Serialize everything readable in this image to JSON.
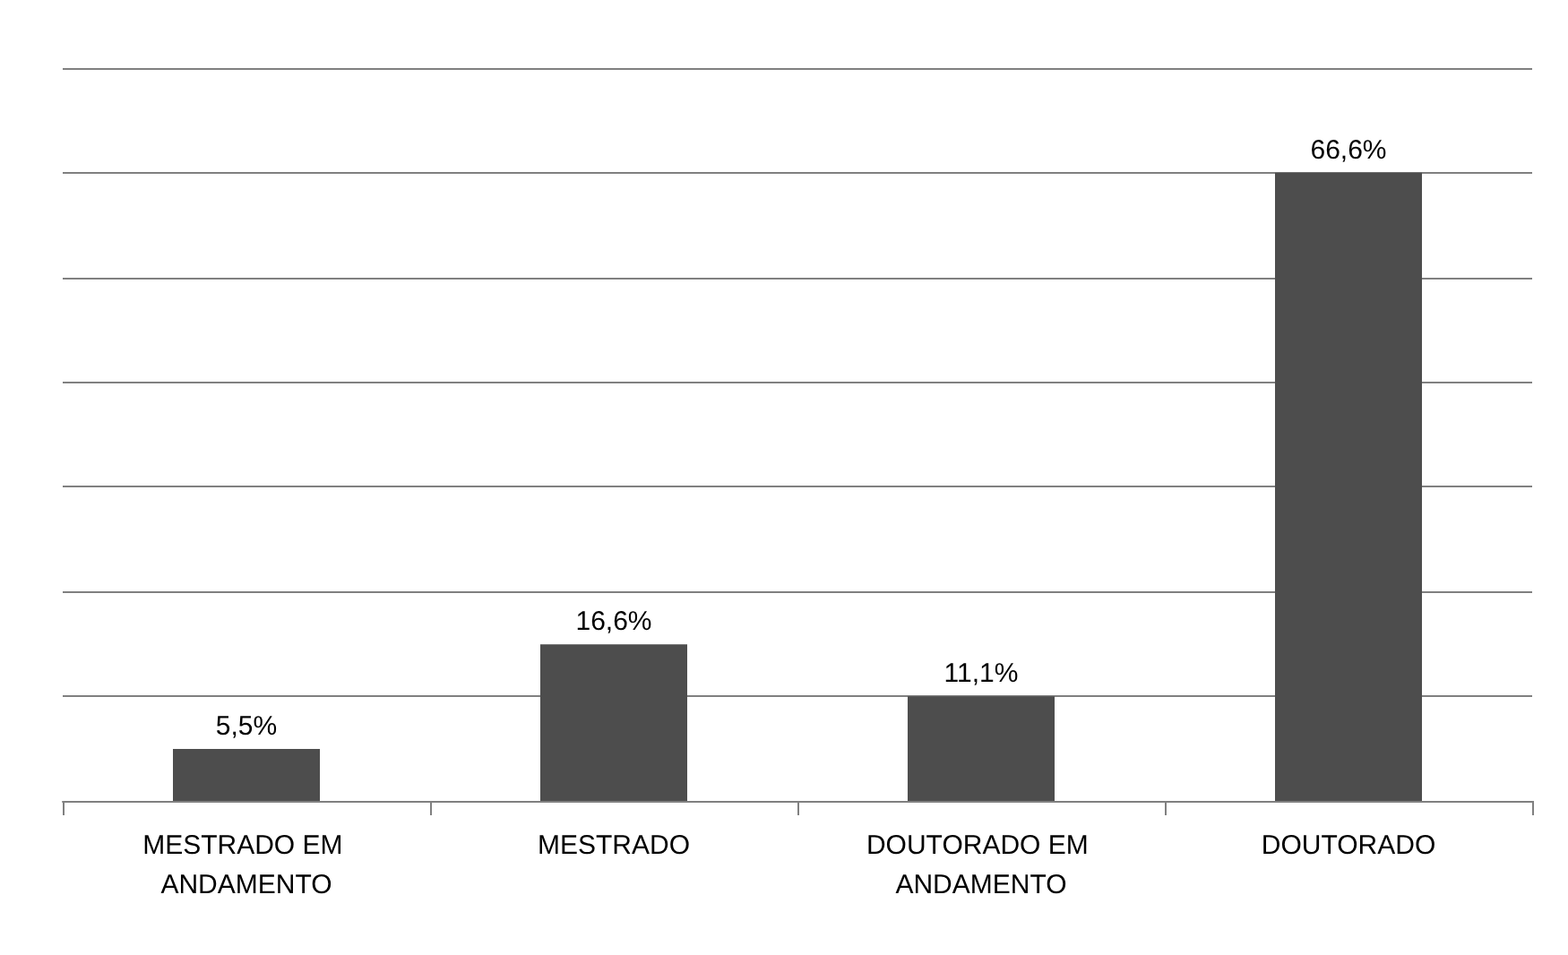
{
  "chart_data": {
    "type": "bar",
    "categories": [
      "MESTRADO EM ANDAMENTO",
      "MESTRADO",
      "DOUTORADO EM ANDAMENTO",
      "DOUTORADO"
    ],
    "values": [
      5.5,
      16.6,
      11.1,
      66.6
    ],
    "color": "#4d4d4d",
    "value_labels": [
      "5,5%",
      "16,6%",
      "11,1%",
      "66,6%"
    ],
    "ylim": [
      0,
      77.7
    ],
    "yticks": [
      0,
      {
        "value": 11.1,
        "label": null
      },
      {
        "value": 22.2,
        "label": null
      },
      {
        "value": 33.3,
        "label": null
      },
      {
        "value": 44.4,
        "label": null
      },
      {
        "value": 55.5,
        "label": null
      },
      {
        "value": 66.6,
        "label": null
      },
      {
        "value": 77.7,
        "label": null
      }
    ],
    "tick_labels": "x",
    "grid": "y"
  }
}
